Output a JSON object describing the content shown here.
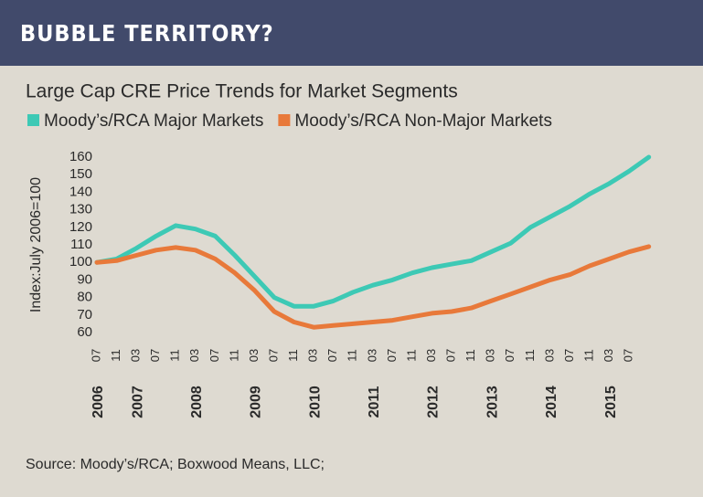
{
  "chart_data": {
    "type": "line",
    "title": "BUBBLE TERRITORY?",
    "subtitle": "Large Cap CRE Price Trends for Market Segments",
    "y_label": "Index:July 2006=100",
    "source": "Source: Moody’s/RCA; Boxwood Means, LLC;",
    "categories": [
      "07",
      "11",
      "03",
      "07",
      "11",
      "03",
      "07",
      "11",
      "03",
      "07",
      "11",
      "03",
      "07",
      "11",
      "03",
      "07",
      "11",
      "03",
      "07",
      "11",
      "03",
      "07",
      "11",
      "03",
      "07",
      "11",
      "03",
      "07",
      null
    ],
    "years": [
      "2006",
      "2007",
      "2008",
      "2009",
      "2010",
      "2011",
      "2012",
      "2013",
      "2014",
      "2015"
    ],
    "series": [
      {
        "name": "Moody’s/RCA Major Markets",
        "color": "#3dc9b5",
        "values": [
          100,
          102,
          108,
          115,
          121,
          119,
          115,
          104,
          92,
          80,
          75,
          75,
          78,
          83,
          87,
          90,
          94,
          97,
          99,
          101,
          106,
          111,
          120,
          126,
          132,
          139,
          145,
          152,
          160
        ]
      },
      {
        "name": "Moody’s/RCA Non-Major Markets",
        "color": "#e8793a",
        "values": [
          100,
          101,
          104,
          107,
          108.5,
          107,
          102,
          94,
          84,
          72,
          66,
          63,
          64,
          65,
          66,
          67,
          69,
          71,
          72,
          74,
          78,
          82,
          86,
          90,
          93,
          98,
          102,
          106,
          109
        ]
      }
    ],
    "ylim": [
      60,
      160
    ],
    "yticks": [
      60,
      70,
      80,
      90,
      100,
      110,
      120,
      130,
      140,
      150,
      160
    ],
    "grid": false
  }
}
